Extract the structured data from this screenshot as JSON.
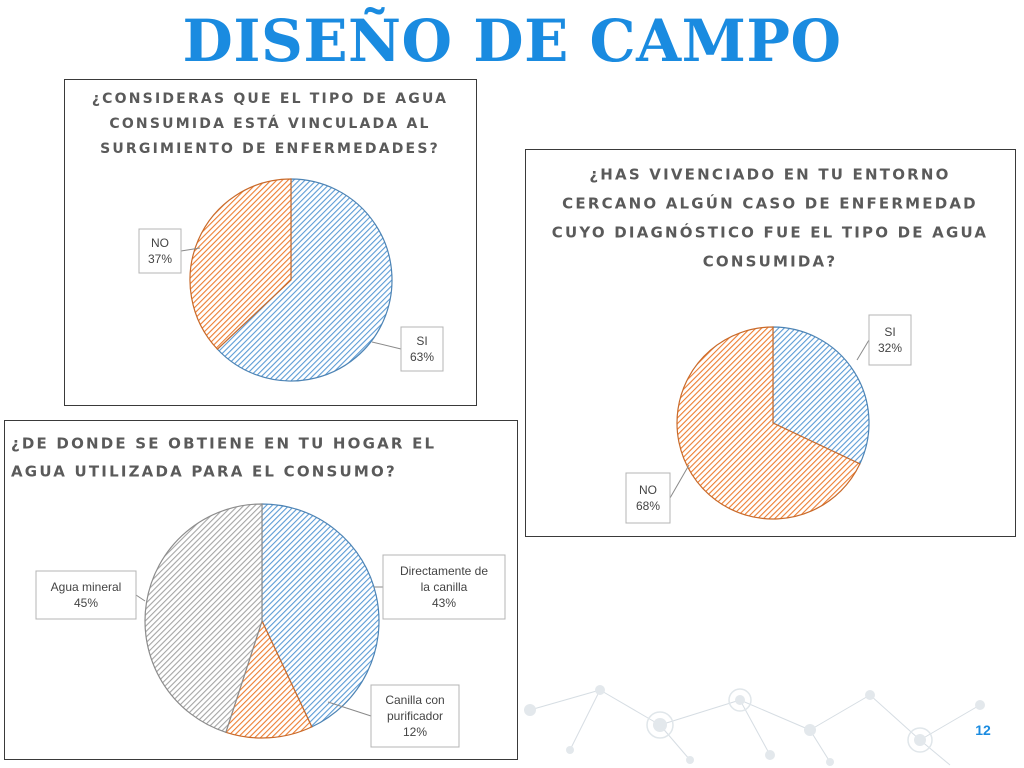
{
  "slide": {
    "title": "DISEÑO DE CAMPO",
    "page_number": "12",
    "accent_color": "#1a8be0"
  },
  "chart_data": [
    {
      "type": "pie",
      "title_lines": [
        "¿CONSIDERAS QUE EL TIPO DE AGUA",
        "CONSUMIDA ESTÁ VINCULADA AL",
        "SURGIMIENTO DE ENFERMEDADES?"
      ],
      "slices": [
        {
          "label": "SI",
          "value": 63,
          "pct": "63%",
          "color": "#5b9bd5"
        },
        {
          "label": "NO",
          "value": 37,
          "pct": "37%",
          "color": "#ed7d31"
        }
      ]
    },
    {
      "type": "pie",
      "title_lines": [
        "¿HAS VIVENCIADO EN TU ENTORNO",
        "CERCANO ALGÚN CASO DE ENFERMEDAD",
        "CUYO DIAGNÓSTICO FUE EL TIPO DE AGUA",
        "CONSUMIDA?"
      ],
      "slices": [
        {
          "label": "SI",
          "value": 32,
          "pct": "32%",
          "color": "#5b9bd5"
        },
        {
          "label": "NO",
          "value": 68,
          "pct": "68%",
          "color": "#ed7d31"
        }
      ]
    },
    {
      "type": "pie",
      "title_lines": [
        "¿DE DONDE SE OBTIENE EN TU HOGAR EL",
        "AGUA UTILIZADA PARA EL CONSUMO?"
      ],
      "slices": [
        {
          "label": "Directamente de la canilla",
          "label_lines": [
            "Directamente de",
            "la canilla"
          ],
          "value": 43,
          "pct": "43%",
          "color": "#5b9bd5"
        },
        {
          "label": "Canilla con purificador",
          "label_lines": [
            "Canilla con",
            "purificador"
          ],
          "value": 12,
          "pct": "12%",
          "color": "#ed7d31"
        },
        {
          "label": "Agua mineral",
          "label_lines": [
            "Agua mineral"
          ],
          "value": 45,
          "pct": "45%",
          "color": "#a5a5a5"
        }
      ]
    }
  ]
}
